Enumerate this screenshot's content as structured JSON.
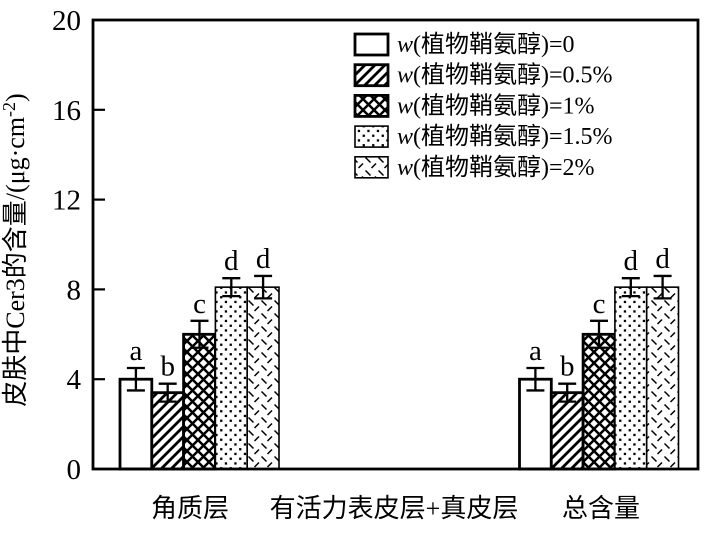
{
  "figure": {
    "background": "#ffffff",
    "ink_color": "#000000"
  },
  "chart_data": {
    "type": "bar",
    "title": "",
    "ylabel_prefix": "皮肤中Cer3的含量/(μg·cm",
    "ylabel_sup": "-2",
    "ylabel_suffix": ")",
    "xlabel": "",
    "ylim": [
      0,
      20
    ],
    "yticks": [
      0,
      4,
      8,
      12,
      16,
      20
    ],
    "grid": false,
    "legend_position": "top-right-inside",
    "categories": [
      "角质层",
      "有活力表皮层+真皮层",
      "总含量"
    ],
    "series": [
      {
        "label_italic": "w",
        "label_rest": "(植物鞘氨醇)=0",
        "pattern": "blank",
        "values": [
          4.0,
          null,
          4.0
        ],
        "errors": [
          0.5,
          null,
          0.5
        ],
        "letters": [
          "a",
          null,
          "a"
        ]
      },
      {
        "label_italic": "w",
        "label_rest": "(植物鞘氨醇)=0.5%",
        "pattern": "diagonal",
        "values": [
          3.4,
          null,
          3.4
        ],
        "errors": [
          0.4,
          null,
          0.4
        ],
        "letters": [
          "b",
          null,
          "b"
        ]
      },
      {
        "label_italic": "w",
        "label_rest": "(植物鞘氨醇)=1%",
        "pattern": "crosshatch",
        "values": [
          6.0,
          null,
          6.0
        ],
        "errors": [
          0.6,
          null,
          0.6
        ],
        "letters": [
          "c",
          null,
          "c"
        ]
      },
      {
        "label_italic": "w",
        "label_rest": "(植物鞘氨醇)=1.5%",
        "pattern": "dots",
        "values": [
          8.1,
          null,
          8.1
        ],
        "errors": [
          0.4,
          null,
          0.4
        ],
        "letters": [
          "d",
          null,
          "d"
        ]
      },
      {
        "label_italic": "w",
        "label_rest": "(植物鞘氨醇)=2%",
        "pattern": "dashes",
        "values": [
          8.1,
          null,
          8.1
        ],
        "errors": [
          0.5,
          null,
          0.5
        ],
        "letters": [
          "d",
          null,
          "d"
        ]
      }
    ]
  }
}
